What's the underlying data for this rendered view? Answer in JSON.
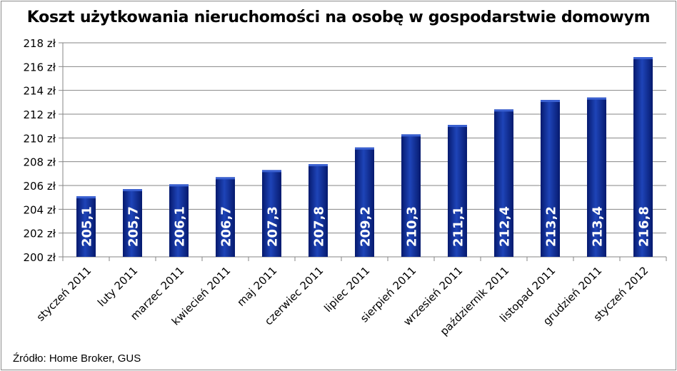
{
  "chart_data": {
    "type": "bar",
    "title": "Koszt użytkowania nieruchomości na osobę w gospodarstwie domowym",
    "categories": [
      "styczeń 2011",
      "luty 2011",
      "marzec 2011",
      "kwiecień 2011",
      "maj 2011",
      "czerwiec 2011",
      "lipiec 2011",
      "sierpień 2011",
      "wrzesień 2011",
      "październik 2011",
      "listopad 2011",
      "grudzień 2011",
      "styczeń 2012"
    ],
    "values": [
      205.1,
      205.7,
      206.1,
      206.7,
      207.3,
      207.8,
      209.2,
      210.3,
      211.1,
      212.4,
      213.2,
      213.4,
      216.8
    ],
    "data_labels": [
      "205,1",
      "205,7",
      "206,1",
      "206,7",
      "207,3",
      "207,8",
      "209,2",
      "210,3",
      "211,1",
      "212,4",
      "213,2",
      "213,4",
      "216,8"
    ],
    "ylim": [
      200,
      218
    ],
    "yticks": [
      200,
      202,
      204,
      206,
      208,
      210,
      212,
      214,
      216,
      218
    ],
    "ytick_labels": [
      "200 zł",
      "202 zł",
      "204 zł",
      "206 zł",
      "208 zł",
      "210 zł",
      "212 zł",
      "214 zł",
      "216 zł",
      "218 zł"
    ],
    "grid": true,
    "legend": "none",
    "bar_color": "#0d2a8c",
    "source": "Źródło: Home Broker, GUS"
  }
}
